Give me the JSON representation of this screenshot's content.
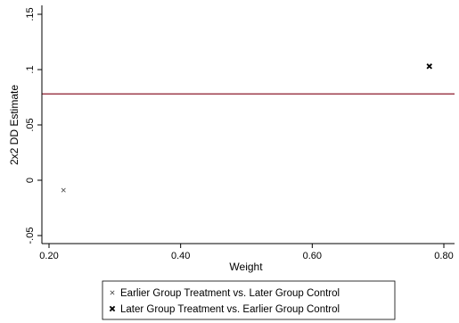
{
  "chart_data": {
    "type": "scatter",
    "xlabel": "Weight",
    "ylabel": "2x2 DD Estimate",
    "xlim": [
      0.2,
      0.8
    ],
    "ylim": [
      -0.05,
      0.15
    ],
    "x_ticks": [
      0.2,
      0.4,
      0.6,
      0.8
    ],
    "x_tick_labels": [
      "0.20",
      "0.40",
      "0.60",
      "0.80"
    ],
    "y_ticks": [
      -0.05,
      0,
      0.05,
      0.1,
      0.15
    ],
    "y_tick_labels": [
      "-.05",
      "0",
      ".05",
      ".1",
      ".15"
    ],
    "series": [
      {
        "name": "Earlier Group Treatment vs. Later Group Control",
        "marker": "x-small",
        "color": "#555555",
        "points": [
          {
            "x": 0.222,
            "y": -0.009
          }
        ]
      },
      {
        "name": "Later Group Treatment vs. Earlier Group Control",
        "marker": "x-bold",
        "color": "#000000",
        "points": [
          {
            "x": 0.778,
            "y": 0.103
          }
        ]
      }
    ],
    "reference_line": {
      "y": 0.078,
      "color": "#8b1a2b"
    },
    "grid": false,
    "legend_position": "bottom"
  }
}
